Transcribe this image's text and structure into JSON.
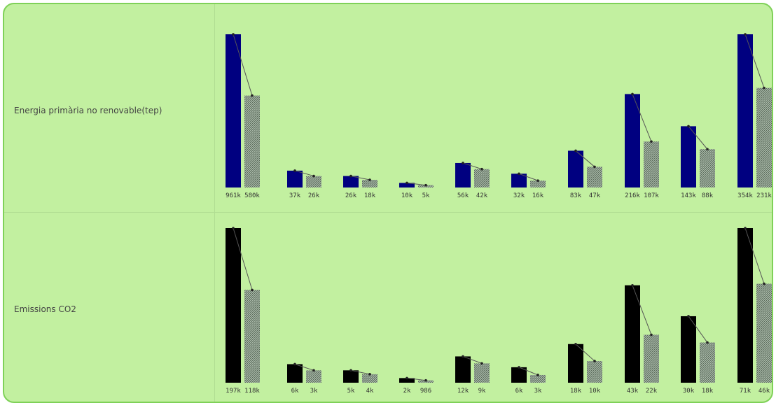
{
  "colors": {
    "energy_bar": "#000080",
    "co2_bar": "#000000",
    "hatched_bar": "#8a9b8a",
    "connector": "#555555"
  },
  "chart_data": [
    {
      "type": "bar",
      "row_label": "Energia primària no renovable(tep)",
      "pairs": [
        {
          "a": "961k",
          "b": "580k"
        },
        {
          "a": "37k",
          "b": "26k"
        },
        {
          "a": "26k",
          "b": "18k"
        },
        {
          "a": "10k",
          "b": "5k"
        },
        {
          "a": "56k",
          "b": "42k"
        },
        {
          "a": "32k",
          "b": "16k"
        },
        {
          "a": "83k",
          "b": "47k"
        },
        {
          "a": "216k",
          "b": "107k"
        },
        {
          "a": "143k",
          "b": "88k"
        },
        {
          "a": "354k",
          "b": "231k"
        }
      ],
      "relative_heights": [
        [
          1.0,
          0.6
        ],
        [
          0.11,
          0.075
        ],
        [
          0.075,
          0.05
        ],
        [
          0.03,
          0.015
        ],
        [
          0.16,
          0.12
        ],
        [
          0.09,
          0.045
        ],
        [
          0.24,
          0.135
        ],
        [
          0.61,
          0.3
        ],
        [
          0.4,
          0.25
        ],
        [
          1.0,
          0.65
        ]
      ]
    },
    {
      "type": "bar",
      "row_label": "Emissions CO2",
      "pairs": [
        {
          "a": "197k",
          "b": "118k"
        },
        {
          "a": "6k",
          "b": "3k"
        },
        {
          "a": "5k",
          "b": "4k"
        },
        {
          "a": "2k",
          "b": "986"
        },
        {
          "a": "12k",
          "b": "9k"
        },
        {
          "a": "6k",
          "b": "3k"
        },
        {
          "a": "18k",
          "b": "10k"
        },
        {
          "a": "43k",
          "b": "22k"
        },
        {
          "a": "30k",
          "b": "18k"
        },
        {
          "a": "71k",
          "b": "46k"
        }
      ],
      "relative_heights": [
        [
          1.0,
          0.6
        ],
        [
          0.12,
          0.08
        ],
        [
          0.08,
          0.055
        ],
        [
          0.03,
          0.015
        ],
        [
          0.17,
          0.125
        ],
        [
          0.1,
          0.05
        ],
        [
          0.25,
          0.14
        ],
        [
          0.63,
          0.31
        ],
        [
          0.43,
          0.26
        ],
        [
          1.0,
          0.64
        ]
      ]
    }
  ]
}
